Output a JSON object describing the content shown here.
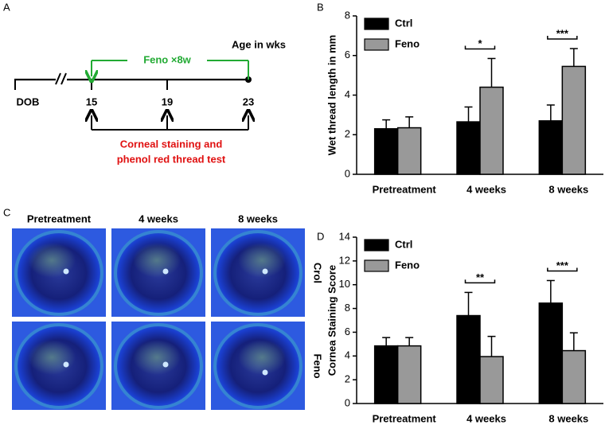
{
  "panel_labels": [
    "A",
    "B",
    "C",
    "D"
  ],
  "timeline": {
    "axis_title": "Age in wks",
    "treatment": "Feno ×8w",
    "start": "DOB",
    "weeks": [
      "15",
      "19",
      "23"
    ],
    "tests": [
      "Corneal staining and",
      "phenol red thread test"
    ]
  },
  "images": {
    "columns": [
      "Pretreatment",
      "4 weeks",
      "8 weeks"
    ],
    "rows": [
      "Crol",
      "Feno"
    ]
  },
  "chart_data": [
    {
      "type": "bar",
      "ylabel": "Wet thread length in mm",
      "categories": [
        "Pretreatment",
        "4 weeks",
        "8 weeks"
      ],
      "series": [
        {
          "name": "Ctrl",
          "color": "#000000",
          "values": [
            2.3,
            2.65,
            2.7
          ],
          "errors": [
            0.45,
            0.75,
            0.8
          ]
        },
        {
          "name": "Feno",
          "color": "#999999",
          "values": [
            2.35,
            4.4,
            5.45
          ],
          "errors": [
            0.55,
            1.45,
            0.9
          ]
        }
      ],
      "significance": [
        null,
        "*",
        "***"
      ],
      "ylim": [
        0,
        8
      ],
      "yticks": [
        0,
        2,
        4,
        6,
        8
      ],
      "legend": "top-left"
    },
    {
      "type": "bar",
      "ylabel": "Cornea Staining Score",
      "categories": [
        "Pretreatment",
        "4 weeks",
        "8 weeks"
      ],
      "series": [
        {
          "name": "Ctrl",
          "color": "#000000",
          "values": [
            4.85,
            7.4,
            8.45
          ],
          "errors": [
            0.7,
            1.95,
            1.9
          ]
        },
        {
          "name": "Feno",
          "color": "#999999",
          "values": [
            4.85,
            3.95,
            4.45
          ],
          "errors": [
            0.7,
            1.7,
            1.5
          ]
        }
      ],
      "significance": [
        null,
        "**",
        "***"
      ],
      "ylim": [
        0,
        14
      ],
      "yticks": [
        0,
        2,
        4,
        6,
        8,
        10,
        12,
        14
      ],
      "legend": "top-left"
    }
  ]
}
